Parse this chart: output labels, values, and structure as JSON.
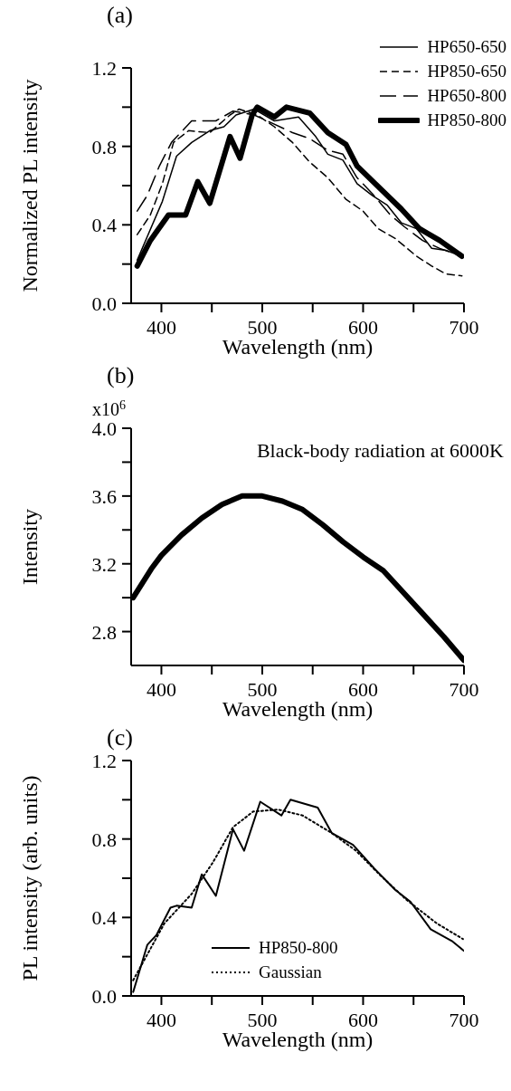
{
  "chart_data": [
    {
      "type": "line",
      "title": "(a)",
      "xlabel": "Wavelength (nm)",
      "ylabel": "Normalized PL intensity",
      "xlim": [
        370,
        700
      ],
      "xticks": [
        400,
        {
          "value": 450,
          "label": null
        },
        500,
        {
          "value": 550,
          "label": null
        },
        600,
        {
          "value": 650,
          "label": null
        },
        700
      ],
      "ylim": [
        0,
        1.2
      ],
      "yticks": [
        {
          "value": 0,
          "label": "0.0"
        },
        {
          "value": 0.2,
          "label": null
        },
        0.4,
        {
          "value": 0.6,
          "label": null
        },
        0.8,
        {
          "value": 1.0,
          "label": null
        },
        1.2
      ],
      "legend": "top right",
      "marker": "none",
      "series": [
        {
          "name": "HP650-650",
          "color": "#000000",
          "line_style": "solid",
          "x": [
            376,
            401,
            415,
            430,
            448,
            462,
            474,
            492,
            512,
            536,
            553,
            565,
            580,
            594,
            609,
            624,
            638,
            653,
            668,
            682,
            698
          ],
          "values": [
            0.22,
            0.52,
            0.75,
            0.82,
            0.88,
            0.9,
            0.96,
            0.99,
            0.93,
            0.95,
            0.85,
            0.76,
            0.73,
            0.61,
            0.55,
            0.5,
            0.41,
            0.38,
            0.28,
            0.27,
            0.24
          ]
        },
        {
          "name": "HP850-650",
          "color": "#000000",
          "line_style": "dashed",
          "x": [
            376,
            389,
            401,
            412,
            427,
            448,
            468,
            477,
            495,
            512,
            530,
            547,
            565,
            583,
            600,
            615,
            632,
            653,
            668,
            682,
            698
          ],
          "values": [
            0.35,
            0.45,
            0.61,
            0.82,
            0.88,
            0.87,
            0.96,
            0.99,
            0.96,
            0.9,
            0.82,
            0.72,
            0.64,
            0.53,
            0.47,
            0.38,
            0.33,
            0.24,
            0.19,
            0.15,
            0.14
          ]
        },
        {
          "name": "HP650-800",
          "color": "#000000",
          "line_style": "dashed",
          "x": [
            376,
            386,
            398,
            410,
            430,
            454,
            471,
            492,
            509,
            530,
            547,
            565,
            580,
            594,
            609,
            627,
            641,
            659,
            676,
            698
          ],
          "values": [
            0.47,
            0.55,
            0.7,
            0.82,
            0.93,
            0.93,
            0.98,
            0.96,
            0.92,
            0.87,
            0.84,
            0.78,
            0.76,
            0.64,
            0.56,
            0.45,
            0.39,
            0.32,
            0.28,
            0.24
          ]
        },
        {
          "name": "HP850-800",
          "color": "#000000",
          "line_style": "solid",
          "x": [
            376,
            389,
            407,
            424,
            436,
            448,
            468,
            478,
            490,
            495,
            512,
            524,
            547,
            565,
            583,
            594,
            612,
            638,
            656,
            676,
            698
          ],
          "values": [
            0.19,
            0.32,
            0.45,
            0.45,
            0.62,
            0.51,
            0.85,
            0.74,
            0.96,
            1.0,
            0.95,
            1.0,
            0.97,
            0.87,
            0.81,
            0.7,
            0.61,
            0.48,
            0.38,
            0.32,
            0.24
          ]
        }
      ]
    },
    {
      "type": "line",
      "title": "(b)",
      "xlabel": "Wavelength (nm)",
      "ylabel": "Intensity",
      "annotations": [
        "Black-body radiation at 6000K",
        "x10$^{6}$"
      ],
      "xlim": [
        370,
        700
      ],
      "xticks": [
        400,
        {
          "value": 450,
          "label": null
        },
        500,
        {
          "value": 550,
          "label": null
        },
        600,
        {
          "value": 650,
          "label": null
        },
        700
      ],
      "ylim": [
        2.6,
        4.0
      ],
      "yticks": [
        2.8,
        {
          "value": 3.0,
          "label": null
        },
        3.2,
        {
          "value": 3.4,
          "label": null
        },
        3.6,
        {
          "value": 3.8,
          "label": null
        },
        {
          "value": 4.0,
          "label": "4.0"
        }
      ],
      "legend": false,
      "marker": "none",
      "series": [
        {
          "color": "#000000",
          "line_style": "solid",
          "x": [
            372,
            390,
            400,
            420,
            440,
            460,
            480,
            500,
            520,
            540,
            560,
            580,
            600,
            620,
            640,
            660,
            680,
            700
          ],
          "values": [
            3.0,
            3.17,
            3.25,
            3.37,
            3.47,
            3.55,
            3.6,
            3.6,
            3.57,
            3.52,
            3.43,
            3.33,
            3.24,
            3.16,
            3.03,
            2.9,
            2.77,
            2.63
          ]
        }
      ]
    },
    {
      "type": "line",
      "title": "(c)",
      "xlabel": "Wavelength (nm)",
      "ylabel": "PL intensity (arb. units)",
      "xlim": [
        370,
        700
      ],
      "xticks": [
        400,
        {
          "value": 450,
          "label": null
        },
        500,
        {
          "value": 550,
          "label": null
        },
        600,
        {
          "value": 650,
          "label": null
        },
        700
      ],
      "ylim": [
        0,
        1.2
      ],
      "yticks": [
        {
          "value": 0,
          "label": "0.0"
        },
        {
          "value": 0.2,
          "label": null
        },
        0.4,
        {
          "value": 0.6,
          "label": null
        },
        0.8,
        {
          "value": 1.0,
          "label": null
        },
        1.2
      ],
      "legend": "bottom",
      "marker": "none",
      "series": [
        {
          "name": "HP850-800",
          "color": "#000000",
          "line_style": "solid",
          "x": [
            372,
            386,
            395,
            409,
            415,
            430,
            440,
            454,
            471,
            482,
            498,
            519,
            528,
            555,
            569,
            590,
            611,
            632,
            647,
            667,
            688,
            700
          ],
          "values": [
            0.02,
            0.26,
            0.31,
            0.45,
            0.46,
            0.45,
            0.62,
            0.51,
            0.85,
            0.74,
            0.99,
            0.92,
            1.0,
            0.96,
            0.83,
            0.77,
            0.65,
            0.54,
            0.48,
            0.34,
            0.28,
            0.23
          ]
        },
        {
          "name": "Gaussian",
          "color": "#000000",
          "line_style": "dotted",
          "x": [
            372,
            403,
            430,
            451,
            471,
            491,
            516,
            540,
            569,
            593,
            616,
            643,
            673,
            699
          ],
          "values": [
            0.08,
            0.37,
            0.52,
            0.68,
            0.86,
            0.94,
            0.95,
            0.92,
            0.83,
            0.74,
            0.62,
            0.49,
            0.37,
            0.29
          ]
        }
      ]
    }
  ]
}
